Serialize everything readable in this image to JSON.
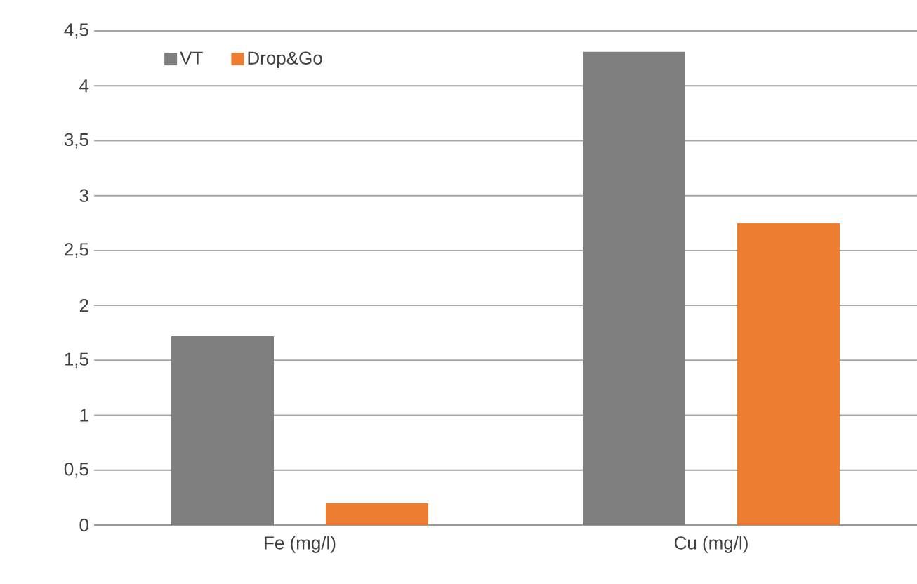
{
  "chart_data": {
    "type": "bar",
    "categories": [
      "Fe (mg/l)",
      "Cu (mg/l)"
    ],
    "series": [
      {
        "name": "VT",
        "color": "#7f7f7f",
        "values": [
          1.72,
          4.31
        ]
      },
      {
        "name": "Drop&Go",
        "color": "#ed7d31",
        "values": [
          0.2,
          2.75
        ]
      }
    ],
    "ylim": [
      0,
      4.5
    ],
    "yticks": [
      0,
      {
        "value": 0.5,
        "label": "0,5"
      },
      1,
      {
        "value": 1.5,
        "label": "1,5"
      },
      2,
      {
        "value": 2.5,
        "label": "2,5"
      },
      3,
      {
        "value": 3.5,
        "label": "3,5"
      },
      4,
      {
        "value": 4.5,
        "label": "4,5"
      }
    ],
    "grid": "y",
    "legend": "top left"
  }
}
